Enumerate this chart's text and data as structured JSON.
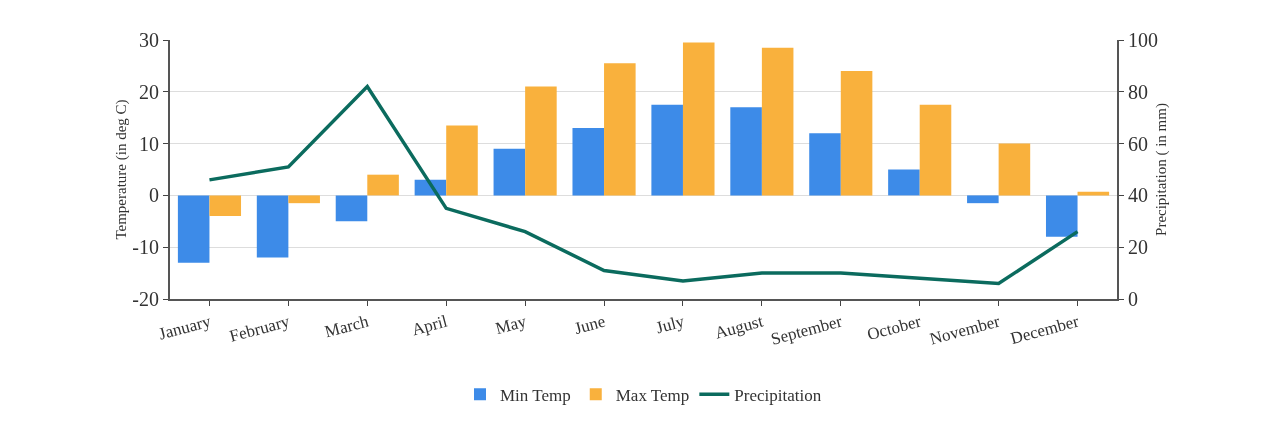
{
  "chart_data": {
    "type": "bar",
    "ylabel": "Temperature (in deg C)",
    "y2label": "Precipitation ( in mm)",
    "categories": [
      "January",
      "February",
      "March",
      "April",
      "May",
      "June",
      "July",
      "August",
      "September",
      "October",
      "November",
      "December"
    ],
    "series": [
      {
        "name": "Min Temp",
        "color": "#3d8be8",
        "values": [
          -13,
          -12,
          -5,
          3,
          9,
          13,
          17.5,
          17,
          12,
          5,
          -1.5,
          -8
        ]
      },
      {
        "name": "Max Temp",
        "color": "#f9b13d",
        "values": [
          -4,
          -1.5,
          4,
          13.5,
          21,
          25.5,
          29.5,
          28.5,
          24,
          17.5,
          10,
          0.7
        ]
      },
      {
        "name": "Precipitation",
        "type": "line",
        "axis": "y2",
        "color": "#0b6b5e",
        "values": [
          46,
          51,
          82,
          35,
          26,
          11,
          7,
          10,
          10,
          8,
          6,
          26
        ]
      }
    ],
    "ylim": [
      -20,
      30
    ],
    "yticks": [
      -20,
      -10,
      0,
      10,
      20,
      30
    ],
    "y2lim": [
      0,
      100
    ],
    "y2ticks": [
      0,
      20,
      40,
      60,
      80,
      100
    ],
    "grid": "y",
    "legend": "bottom",
    "marker": "none",
    "line_style": "solid"
  }
}
